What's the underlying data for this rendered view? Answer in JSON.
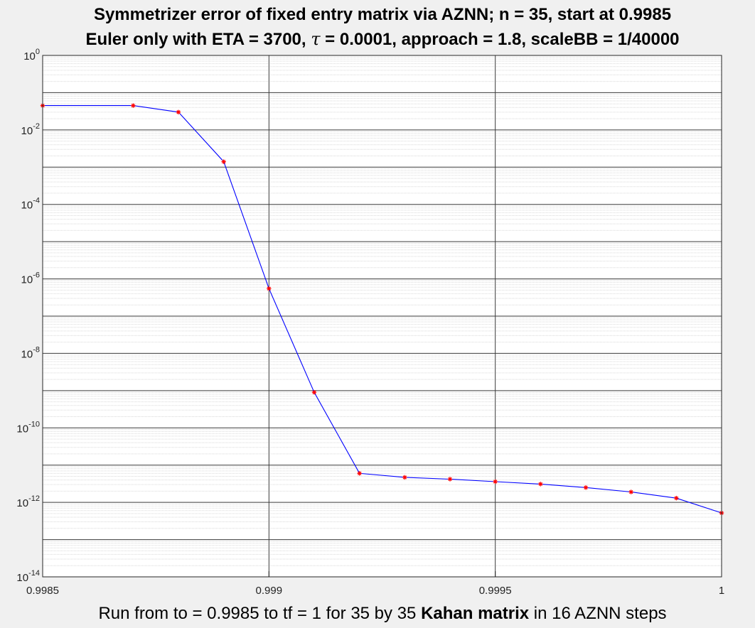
{
  "chart_data": {
    "type": "line",
    "title_line1": "Symmetrizer error of fixed entry matrix via AZNN;  n = 35,  start at 0.9985",
    "title_line2_a": "Euler only with   ETA = 3700,  ",
    "title_line2_tau": "τ",
    "title_line2_b": " = 0.0001,  approach = 1.8,  scaleBB = 1/40000",
    "xlabel_a": "Run from to = 0.9985 to tf = 1 for 35 by 35  ",
    "xlabel_bold": "Kahan matrix",
    "xlabel_b": " in 16 AZNN steps",
    "xlim": [
      0.9985,
      1
    ],
    "ylim": [
      1e-14,
      1
    ],
    "yscale": "log",
    "grid": true,
    "x_ticks": [
      {
        "value": 0.9985,
        "label": "0.9985"
      },
      {
        "value": 0.999,
        "label": "0.999"
      },
      {
        "value": 0.9995,
        "label": "0.9995"
      },
      {
        "value": 1,
        "label": "1"
      }
    ],
    "y_ticks": [
      {
        "exp": 0,
        "base": "10",
        "sup": "0"
      },
      {
        "exp": -2,
        "base": "10",
        "sup": "-2"
      },
      {
        "exp": -4,
        "base": "10",
        "sup": "-4"
      },
      {
        "exp": -6,
        "base": "10",
        "sup": "-6"
      },
      {
        "exp": -8,
        "base": "10",
        "sup": "-8"
      },
      {
        "exp": -10,
        "base": "10",
        "sup": "-10"
      },
      {
        "exp": -12,
        "base": "10",
        "sup": "-12"
      },
      {
        "exp": -14,
        "base": "10",
        "sup": "-14"
      }
    ],
    "line_color": "#0000ff",
    "marker_color": "#ff0000",
    "x": [
      0.9985,
      0.9987,
      0.9988,
      0.9989,
      0.999,
      0.9991,
      0.9992,
      0.9993,
      0.9994,
      0.9995,
      0.9996,
      0.9997,
      0.9998,
      0.9999,
      1.0
    ],
    "y": [
      0.045,
      0.045,
      0.03,
      0.0014,
      5.5e-07,
      9e-10,
      6e-12,
      4.7e-12,
      4.2e-12,
      3.6e-12,
      3.1e-12,
      2.5e-12,
      1.9e-12,
      1.3e-12,
      5.2e-13
    ]
  }
}
